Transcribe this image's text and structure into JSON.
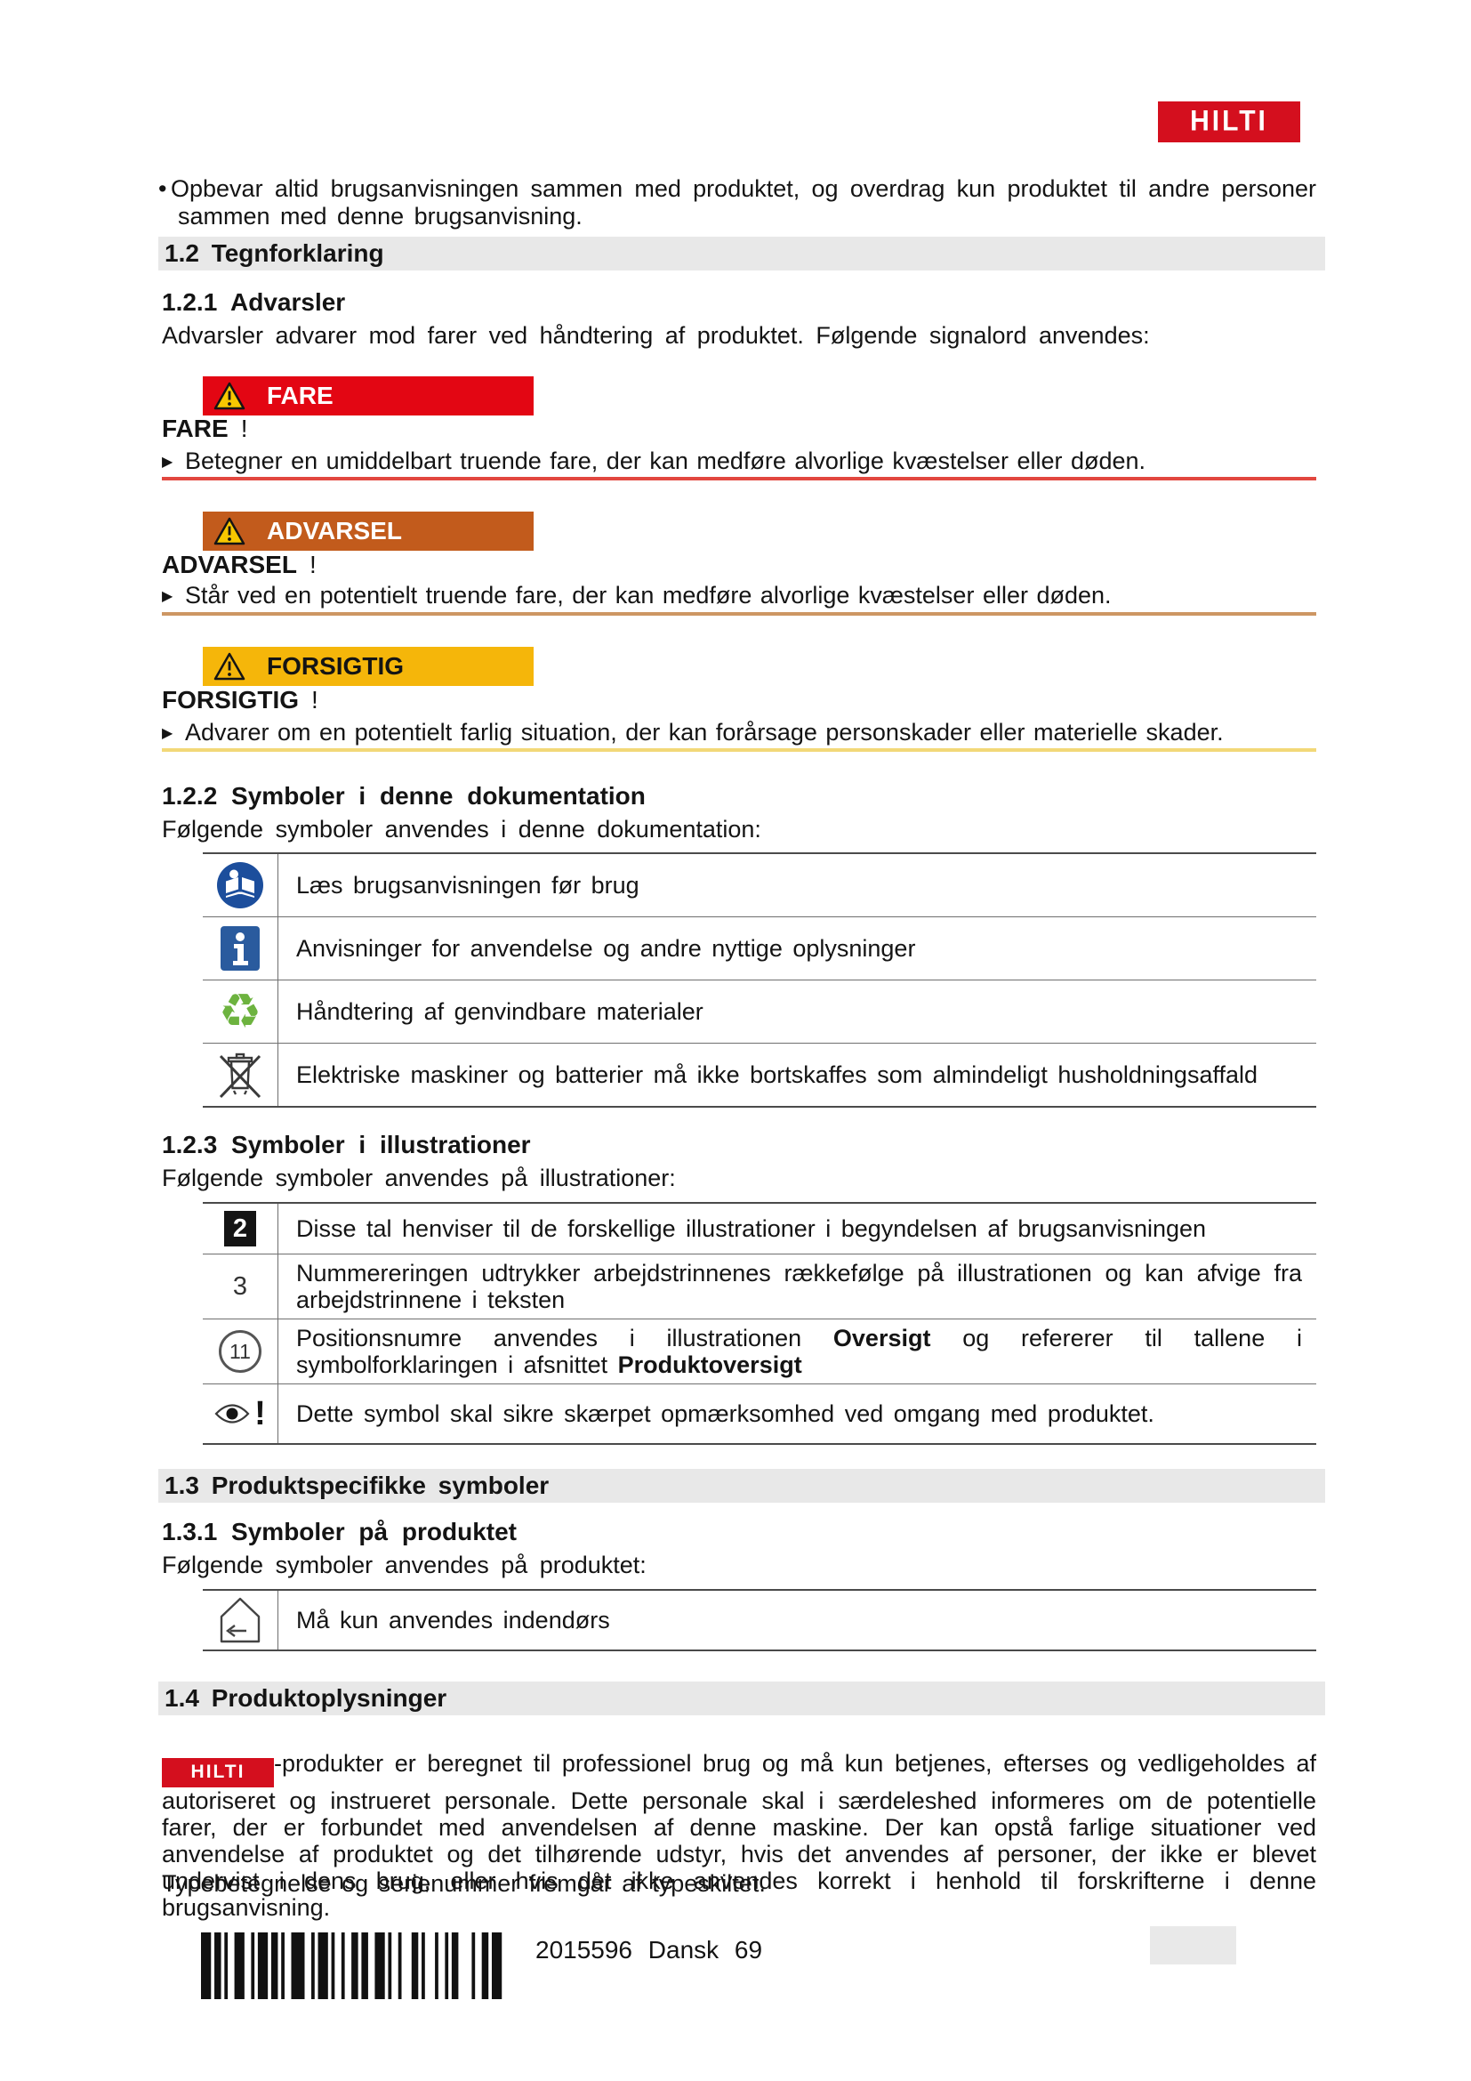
{
  "brand": {
    "logo_text": "HILTI"
  },
  "intro": {
    "bullet_char": "•",
    "text": "Opbevar altid brugsanvisningen sammen med produktet, og overdrag kun produktet til andre personer sammen med denne brugsanvisning."
  },
  "legend": {
    "bar_title": "1.2 Tegnforklaring"
  },
  "advarsler": {
    "title": "1.2.1 Advarsler",
    "body": "Advarsler advarer mod farer ved håndtering af produktet. Følgende signalord anvendes:",
    "marker": "▶",
    "fare": {
      "label": "FARE",
      "bang": "!",
      "text": "Betegner en umiddelbart truende fare, der kan medføre alvorlige kvæstelser eller døden.",
      "color": "#e30613"
    },
    "advarsel": {
      "label": "ADVARSEL",
      "bang": "!",
      "text": "Står ved en potentielt truende fare, der kan medføre alvorlige kvæstelser eller døden.",
      "color": "#c25b1c"
    },
    "forsigtig": {
      "label": "FORSIGTIG",
      "bang": "!",
      "text": "Advarer om en potentielt farlig situation, der kan forårsage personskader eller materielle skader.",
      "color": "#f5b60a"
    }
  },
  "doc_symbols": {
    "title": "1.2.2 Symboler i denne dokumentation",
    "lead": "Følgende symboler anvendes i denne dokumentation:",
    "rows": [
      {
        "icon": "read-manual-icon",
        "text": "Læs brugsanvisningen før brug"
      },
      {
        "icon": "info-icon",
        "glyph": "i",
        "text": "Anvisninger for anvendelse og andre nyttige oplysninger"
      },
      {
        "icon": "recycle-icon",
        "glyph": "♻",
        "text": "Håndtering af genvindbare materialer"
      },
      {
        "icon": "weee-crossed-bin-icon",
        "text": "Elektriske maskiner og batterier må ikke bortskaffes som almindeligt husholdningsaffald"
      }
    ]
  },
  "illus_symbols": {
    "title": "1.2.3 Symboler i illustrationer",
    "lead": "Følgende symboler anvendes på illustrationer:",
    "rows": [
      {
        "icon": "figure-number-badge",
        "glyph": "2",
        "text": "Disse tal henviser til de forskellige illustrationer i begyndelsen af brugsanvisningen"
      },
      {
        "icon": "step-number",
        "glyph": "3",
        "text": "Nummereringen udtrykker arbejdstrinnenes rækkefølge på illustrationen og kan afvige fra arbejdstrinnene i teksten"
      },
      {
        "icon": "position-number-circle",
        "glyph": "11",
        "p1": "Positionsnumre anvendes i illustrationen ",
        "b1": "Oversigt",
        "p2": " og refererer til tallene i symbolforklaringen i afsnittet ",
        "b2": "Produktoversigt"
      },
      {
        "icon": "attention-eye-icon",
        "bang": "!",
        "text": "Dette symbol skal sikre skærpet opmærksomhed ved omgang med produktet."
      }
    ]
  },
  "product_symbols": {
    "bar_title": "1.3 Produktspecifikke symboler",
    "title": "1.3.1 Symboler på produktet",
    "lead": "Følgende symboler anvendes på produktet:",
    "rows": [
      {
        "icon": "indoor-use-only-icon",
        "text": "Må kun anvendes indendørs"
      }
    ]
  },
  "product_info": {
    "bar_title": "1.4 Produktoplysninger",
    "paragraph_after_logo": "-produkter er beregnet til professionel brug og må kun betjenes, efterses og vedligeholdes af autoriseret og instrueret personale. Dette personale skal i særdeleshed informeres om de potentielle farer, der er forbundet med anvendelsen af denne maskine. Der kan opstå farlige situationer ved anvendelse af produktet og det tilhørende udstyr, hvis det anvendes af personer, der ikke er blevet undervist i dens brug, eller hvis det ikke anvendes korrekt i henhold til forskrifterne i denne brugsanvisning.",
    "type_line": "Typebetegnelse og serienummer fremgår af typeskiltet."
  },
  "footer": {
    "code_label": "2015596 Dansk 69"
  },
  "colors": {
    "hilti_red": "#d40f1e",
    "fare_red": "#e30613",
    "advarsel_orange": "#c25b1c",
    "forsigtig_yellow": "#f5b60a",
    "header_bar_gray": "#e8e8e8",
    "manual_blue": "#1c4e9c",
    "info_blue": "#2a5b9e",
    "recycle_green": "#6db33f"
  }
}
